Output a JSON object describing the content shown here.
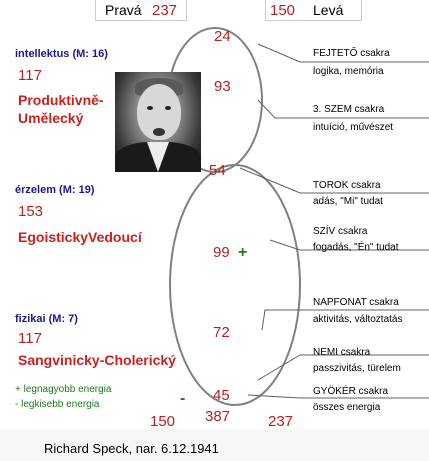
{
  "top": {
    "right_label": "Pravá",
    "right_value": "237",
    "left_value": "150",
    "left_label": "Levá"
  },
  "sections": [
    {
      "heading": "intellektus (M: 16)",
      "value": "117",
      "type": "Produktivně-\nUmělecký",
      "type_line1": "Produktivně-",
      "type_line2": "Umělecký"
    },
    {
      "heading": "érzelem (M: 19)",
      "value": "153",
      "type": "EgoistickyVedoucí"
    },
    {
      "heading": "fizikai (M: 7)",
      "value": "117",
      "type": "Sangvinicky-Cholerický"
    }
  ],
  "node_values": [
    "24",
    "93",
    "54",
    "99",
    "72",
    "45",
    "387"
  ],
  "plus_sign": "+",
  "minus_sign": "-",
  "bottom": {
    "left": "150",
    "right": "237"
  },
  "legend": {
    "plus": "+ legnagyobb energia",
    "minus": "- legkisebb energia"
  },
  "chakras": [
    {
      "name": "FEJTETŐ csakra",
      "desc": "logika, memória"
    },
    {
      "name": "3. SZEM csakra",
      "desc": "intuíció, művészet"
    },
    {
      "name": "TOROK csakra",
      "desc": "adás, \"Mi\" tudat"
    },
    {
      "name": "SZÍV csakra",
      "desc": "fogadás, \"Én\" tudat"
    },
    {
      "name": "NAPFONAT csakra",
      "desc": "aktivitás, változtatás"
    },
    {
      "name": "NEMI csakra",
      "desc": "passzivitás, türelem"
    },
    {
      "name": "GYÖKÉR csakra",
      "desc": "összes energia"
    }
  ],
  "caption": "Richard Speck, nar. 6.12.1941",
  "colors": {
    "values": "#b22222",
    "headings": "#1a1a8c",
    "types": "#cc1f1f",
    "legend": "#1f7a1f",
    "lines": "#808080"
  }
}
